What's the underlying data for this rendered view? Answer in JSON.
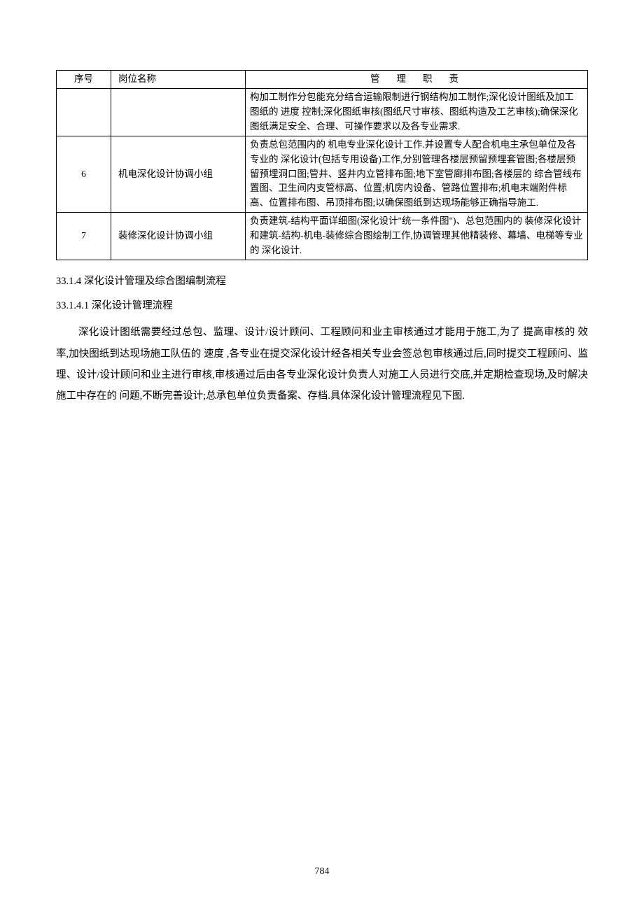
{
  "table": {
    "headers": {
      "num": "序号",
      "title": "岗位名称",
      "duty": "管理职责"
    },
    "rows": [
      {
        "num": "",
        "title": "",
        "duty": "构加工制作分包能充分结合运输限制进行钢结构加工制作;深化设计图纸及加工图纸的 进度 控制;深化图纸审核(图纸尺寸审核、图纸构造及工艺审核);确保深化图纸满足安全、合理、可操作要求以及各专业需求."
      },
      {
        "num": "6",
        "title": "机电深化设计协调小组",
        "duty": "负责总包范围内的 机电专业深化设计工作.并设置专人配合机电主承包单位及各专业的 深化设计(包括专用设备)工作,分别管理各楼层预留预埋套管图;各楼层预留预埋洞口图;管井、竖井内立管排布图;地下室管廊排布图;各楼层的 综合管线布置图、卫生间内支管标高、位置;机房内设备、管路位置排布;机电末端附件标高、位置排布图、吊顶排布图;以确保图纸到达现场能够正确指导施工."
      },
      {
        "num": "7",
        "title": "装修深化设计协调小组",
        "duty": "负责建筑-结构平面详细图(深化设计\"统一条件图\")、总包范围内的 装修深化设计和建筑-结构-机电-装修综合图绘制工作,协调管理其他精装修、幕墙、电梯等专业的 深化设计."
      }
    ]
  },
  "section": {
    "heading": "33.1.4 深化设计管理及综合图编制流程",
    "subheading": "33.1.4.1 深化设计管理流程",
    "paragraph": "深化设计图纸需要经过总包、监理、设计/设计顾问、工程顾问和业主审核通过才能用于施工,为了   提高审核的 效率,加快图纸到达现场施工队伍的 速度 ,各专业在提交深化设计经各相关专业会签总包审核通过后,同时提交工程顾问、监理、设计/设计顾问和业主进行审核,审核通过后由各专业深化设计负责人对施工人员进行交底,并定期检查现场,及时解决施工中存在的 问题,不断完善设计;总承包单位负责备案、存档.具体深化设计管理流程见下图."
  },
  "page_number": "784"
}
